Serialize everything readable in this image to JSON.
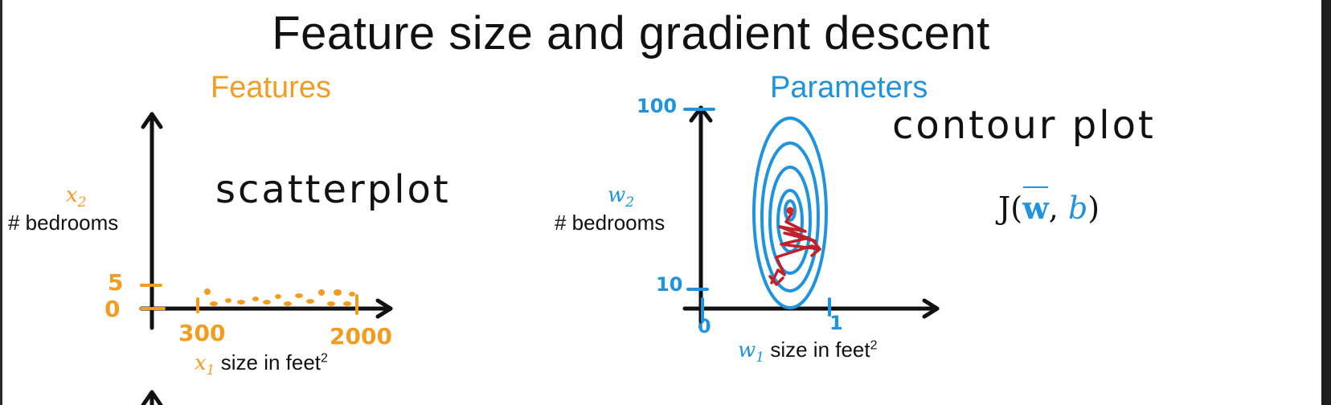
{
  "title": "Feature size and gradient descent",
  "left_panel": {
    "heading": "Features",
    "y_var": "x",
    "y_var_sub": "2",
    "y_label": "# bedrooms",
    "annotation": "scatterplot",
    "y_ticks": [
      "5",
      "0"
    ],
    "x_ticks": [
      "300",
      "2000"
    ],
    "x_var": "x",
    "x_var_sub": "1",
    "x_label": "size in feet",
    "x_label_sup": "2"
  },
  "right_panel": {
    "heading": "Parameters",
    "y_var": "w",
    "y_var_sub": "2",
    "y_label": "# bedrooms",
    "annotation": "contour plot",
    "y_ticks": [
      "100",
      "10"
    ],
    "x_ticks": [
      "0",
      "1"
    ],
    "x_var": "w",
    "x_var_sub": "1",
    "x_label": "size in feet",
    "x_label_sup": "2",
    "cost": {
      "prefix": "J(",
      "w": "w",
      "sep": ", ",
      "b": "b",
      "suffix": ")"
    }
  },
  "colors": {
    "features": "#f29d22",
    "parameters": "#1f93dd",
    "path": "#c0202a",
    "ink": "#111111"
  },
  "icons": [
    "arrow-up-icon",
    "arrow-right-icon"
  ]
}
